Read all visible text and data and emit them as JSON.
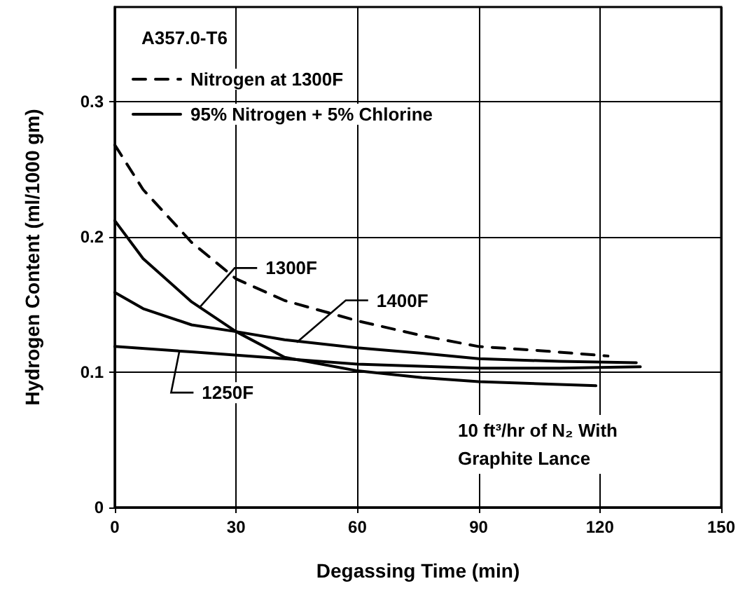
{
  "chart_data": {
    "type": "line",
    "xlabel": "Degassing Time (min)",
    "ylabel": "Hydrogen Content (ml/1000 gm)",
    "xlim": [
      0,
      150
    ],
    "xticks": [
      0,
      30,
      60,
      90,
      120,
      150
    ],
    "ylim": [
      0,
      0.37
    ],
    "yticks": [
      0,
      0.1,
      0.2,
      0.3
    ],
    "grid": true,
    "legend": "top left",
    "marker": "none",
    "series": [
      {
        "name": "Nitrogen at 1300F",
        "color": "#000000",
        "line_style": "dashed",
        "x": [
          0,
          7,
          19,
          30,
          42,
          60,
          76,
          90,
          105,
          122
        ],
        "values": [
          0.268,
          0.235,
          0.196,
          0.169,
          0.153,
          0.138,
          0.127,
          0.119,
          0.116,
          0.112
        ]
      },
      {
        "name": "95% Nitrogen + 5% Chlorine",
        "color": "#000000",
        "line_style": "solid",
        "x": [
          0,
          7,
          19,
          30,
          42,
          60,
          76,
          90,
          119
        ],
        "values": [
          0.212,
          0.184,
          0.152,
          0.13,
          0.111,
          0.101,
          0.096,
          0.093,
          0.09
        ]
      },
      {
        "color": "#000000",
        "line_style": "solid",
        "x": [
          0,
          7,
          19,
          30,
          42,
          60,
          76,
          90,
          110,
          129
        ],
        "values": [
          0.159,
          0.147,
          0.135,
          0.13,
          0.124,
          0.118,
          0.114,
          0.11,
          0.108,
          0.107
        ]
      },
      {
        "color": "#000000",
        "line_style": "solid",
        "x": [
          0,
          19,
          42,
          60,
          90,
          110,
          130
        ],
        "values": [
          0.119,
          0.115,
          0.11,
          0.106,
          0.103,
          0.103,
          0.104
        ]
      }
    ],
    "annotations": [
      "A357.0-T6",
      {
        "text": "1300F",
        "x": 21,
        "y": 0.148
      },
      {
        "text": "1400F",
        "x": 45,
        "y": 0.122
      },
      {
        "text": "1250F",
        "x": 16,
        "y": 0.116
      },
      "10 ft³/hr of N₂ With Graphite Lance"
    ]
  }
}
